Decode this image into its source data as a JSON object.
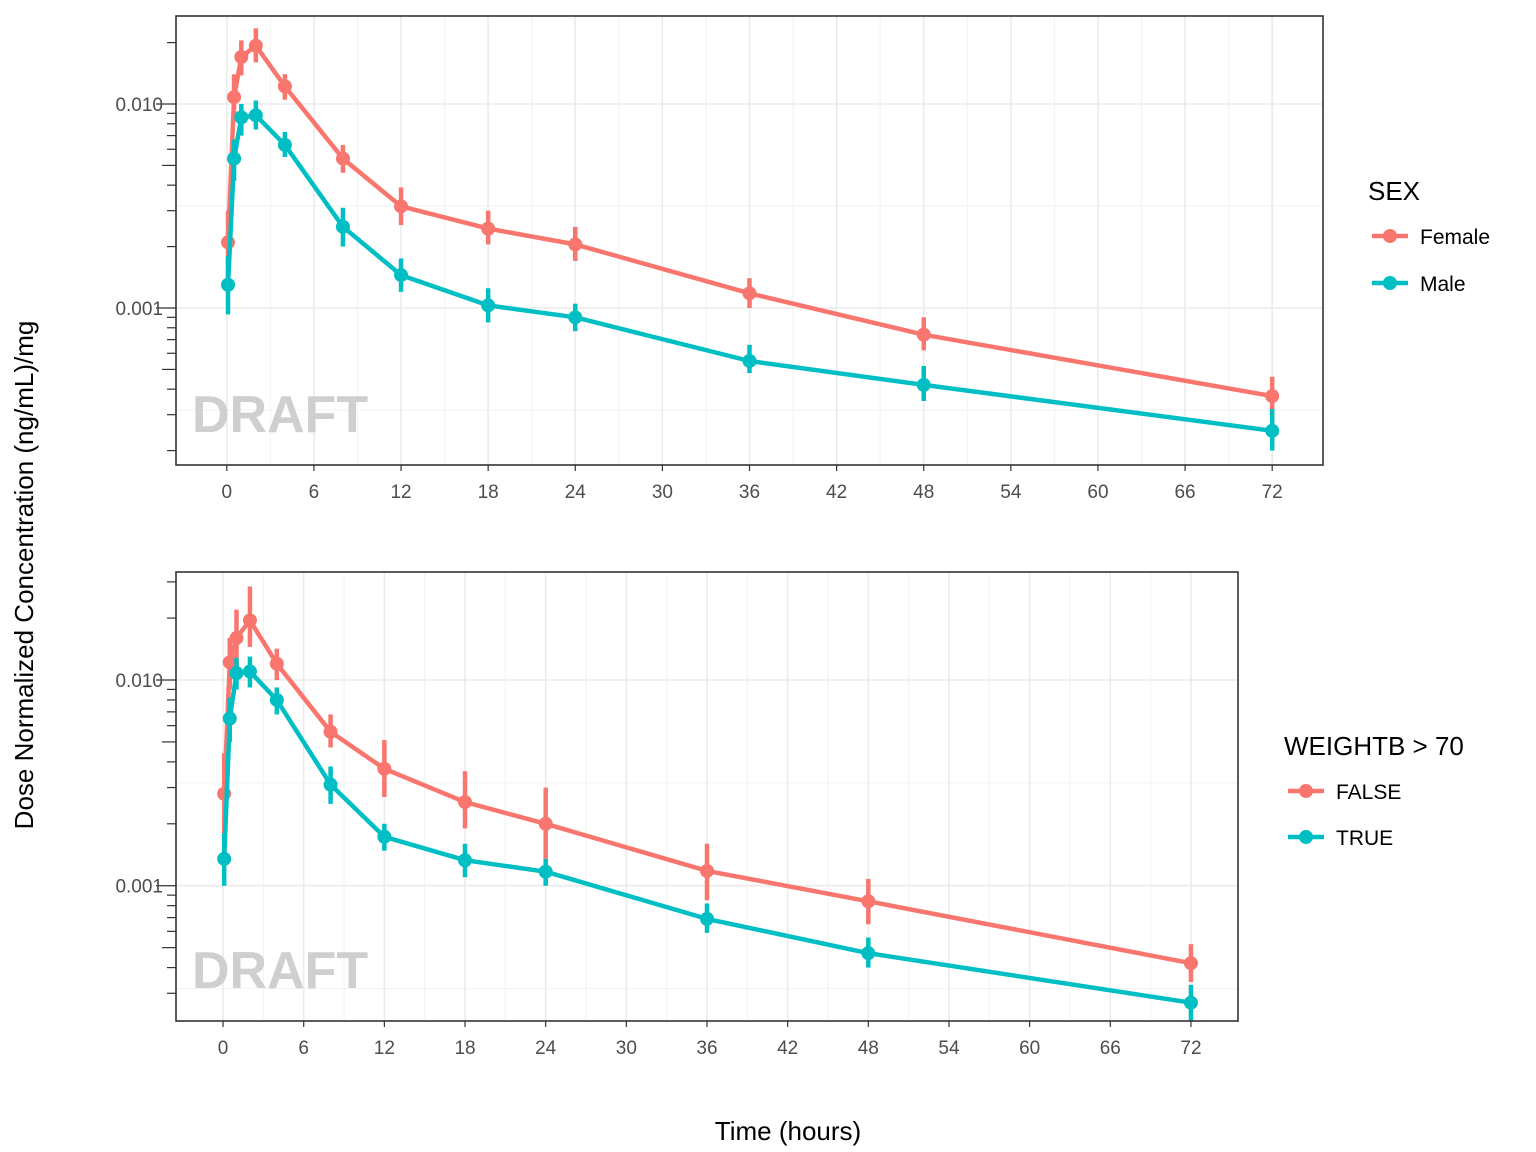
{
  "chart_data": {
    "type": "line",
    "xlabel": "Time (hours)",
    "ylabel": "Dose Normalized Concentration (ng/mL)/mg",
    "watermark": "DRAFT",
    "colors": {
      "first": "#F8766D",
      "second": "#00BFC4"
    },
    "panels": [
      {
        "legend_title": "SEX",
        "legend_position": "right",
        "y_scale": "log10",
        "ylim": [
          0.00017,
          0.027
        ],
        "y_ticks": [
          "0.001",
          "0.010"
        ],
        "xlim": [
          -3.5,
          75.5
        ],
        "x_ticks": [
          "0",
          "6",
          "12",
          "18",
          "24",
          "30",
          "36",
          "42",
          "48",
          "54",
          "60",
          "66",
          "72"
        ],
        "grid": true,
        "series": [
          {
            "name": "Female",
            "x": [
              0.083,
              0.5,
              1,
              2,
              4,
              8,
              12,
              18,
              24,
              36,
              48,
              72
            ],
            "y": [
              0.0021,
              0.0108,
              0.017,
              0.0193,
              0.0122,
              0.0054,
              0.00315,
              0.00245,
              0.00205,
              0.00118,
              0.00074,
              0.00037
            ],
            "lower": [
              0.0014,
              0.0082,
              0.0138,
              0.016,
              0.0105,
              0.0046,
              0.00255,
              0.00205,
              0.0017,
              0.001,
              0.00062,
              0.0003
            ],
            "upper": [
              0.003,
              0.014,
              0.0205,
              0.0235,
              0.014,
              0.0063,
              0.0039,
              0.003,
              0.0025,
              0.0014,
              0.0009,
              0.00046
            ]
          },
          {
            "name": "Male",
            "x": [
              0.083,
              0.5,
              1,
              2,
              4,
              8,
              12,
              18,
              24,
              36,
              48,
              72
            ],
            "y": [
              0.0013,
              0.0054,
              0.0086,
              0.0088,
              0.0063,
              0.0025,
              0.00145,
              0.00103,
              0.0009,
              0.00055,
              0.00042,
              0.00025
            ],
            "lower": [
              0.00093,
              0.0042,
              0.007,
              0.0075,
              0.0055,
              0.002,
              0.0012,
              0.00085,
              0.00077,
              0.00048,
              0.00035,
              0.0002
            ],
            "upper": [
              0.0018,
              0.0067,
              0.01,
              0.0104,
              0.0073,
              0.0031,
              0.00175,
              0.00125,
              0.00105,
              0.00066,
              0.00052,
              0.00032
            ]
          }
        ]
      },
      {
        "legend_title": "WEIGHTB > 70",
        "legend_position": "right",
        "y_scale": "log10",
        "ylim": [
          0.00022,
          0.0335
        ],
        "y_ticks": [
          "0.001",
          "0.010"
        ],
        "xlim": [
          -3.5,
          75.5
        ],
        "x_ticks": [
          "0",
          "6",
          "12",
          "18",
          "24",
          "30",
          "36",
          "42",
          "48",
          "54",
          "60",
          "66",
          "72"
        ],
        "grid": true,
        "series": [
          {
            "name": "FALSE",
            "x": [
              0.083,
              0.5,
              1,
              2,
              4,
              8,
              12,
              18,
              24,
              36,
              48,
              72
            ],
            "y": [
              0.0028,
              0.0122,
              0.016,
              0.0195,
              0.012,
              0.0056,
              0.0037,
              0.00255,
              0.002,
              0.00118,
              0.00084,
              0.00042
            ],
            "lower": [
              0.0018,
              0.009,
              0.0115,
              0.0145,
              0.01,
              0.0047,
              0.0027,
              0.0019,
              0.00135,
              0.00085,
              0.00065,
              0.00034
            ],
            "upper": [
              0.0044,
              0.016,
              0.022,
              0.0285,
              0.0142,
              0.0068,
              0.0051,
              0.0036,
              0.003,
              0.0016,
              0.00108,
              0.00052
            ]
          },
          {
            "name": "TRUE",
            "x": [
              0.083,
              0.5,
              1,
              2,
              4,
              8,
              12,
              18,
              24,
              36,
              48,
              72
            ],
            "y": [
              0.00135,
              0.0065,
              0.0108,
              0.011,
              0.008,
              0.0031,
              0.00173,
              0.00133,
              0.00117,
              0.00069,
              0.00047,
              0.00027
            ],
            "lower": [
              0.001,
              0.005,
              0.009,
              0.0092,
              0.0068,
              0.0025,
              0.00148,
              0.0011,
              0.001,
              0.00059,
              0.0004,
              0.00022
            ],
            "upper": [
              0.0018,
              0.0082,
              0.0128,
              0.013,
              0.0092,
              0.0038,
              0.002,
              0.0016,
              0.00135,
              0.00082,
              0.00056,
              0.00033
            ]
          }
        ]
      }
    ]
  }
}
